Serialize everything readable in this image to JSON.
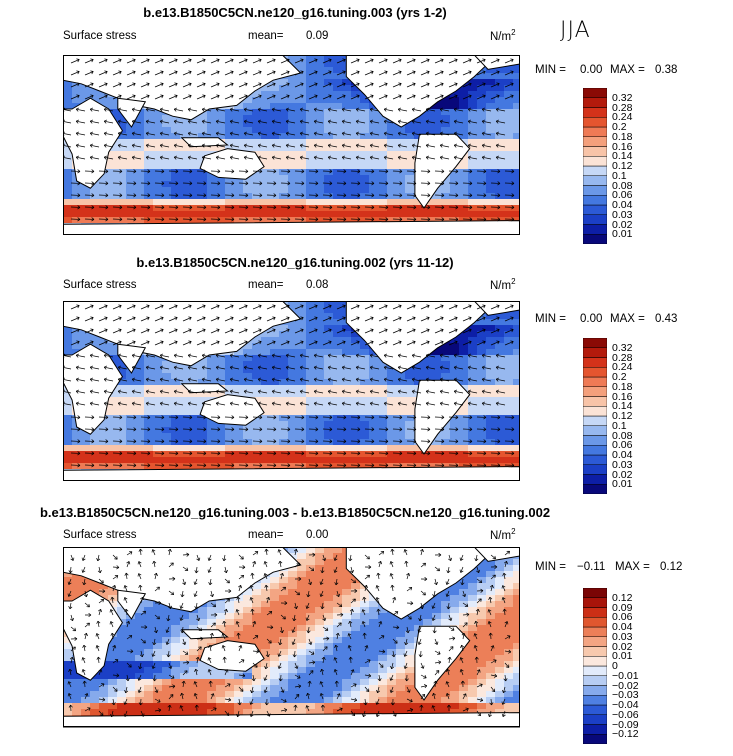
{
  "season": "JJA",
  "panels": [
    {
      "title": "b.e13.B1850C5CN.ne120_g16.tuning.003 (yrs 1-2)",
      "variable": "Surface stress",
      "mean_label": "mean=",
      "mean_value": "0.09",
      "units": "N/m",
      "units_sup": "2",
      "min_label": "MIN =",
      "min_value": "0.00",
      "max_label": "MAX =",
      "max_value": "0.38",
      "colorbar_labels": [
        "0.32",
        "0.28",
        "0.24",
        "0.2",
        "0.18",
        "0.16",
        "0.14",
        "0.12",
        "0.1",
        "0.08",
        "0.06",
        "0.04",
        "0.03",
        "0.02",
        "0.01"
      ]
    },
    {
      "title": "b.e13.B1850C5CN.ne120_g16.tuning.002 (yrs 11-12)",
      "variable": "Surface stress",
      "mean_label": "mean=",
      "mean_value": "0.08",
      "units": "N/m",
      "units_sup": "2",
      "min_label": "MIN =",
      "min_value": "0.00",
      "max_label": "MAX =",
      "max_value": "0.43",
      "colorbar_labels": [
        "0.32",
        "0.28",
        "0.24",
        "0.2",
        "0.18",
        "0.16",
        "0.14",
        "0.12",
        "0.1",
        "0.08",
        "0.06",
        "0.04",
        "0.03",
        "0.02",
        "0.01"
      ]
    },
    {
      "title": "b.e13.B1850C5CN.ne120_g16.tuning.003 - b.e13.B1850C5CN.ne120_g16.tuning.002",
      "variable": "Surface stress",
      "mean_label": "mean=",
      "mean_value": "0.00",
      "units": "N/m",
      "units_sup": "2",
      "min_label": "MIN =",
      "min_value": "−0.11",
      "max_label": "MAX =",
      "max_value": "0.12",
      "colorbar_labels": [
        "0.12",
        "0.09",
        "0.06",
        "0.04",
        "0.03",
        "0.02",
        "0.01",
        "0",
        "−0.01",
        "−0.02",
        "−0.03",
        "−0.04",
        "−0.06",
        "−0.09",
        "−0.12"
      ]
    }
  ],
  "colors": {
    "seq": [
      "#08087a",
      "#0d1ea6",
      "#1b3fc6",
      "#2c5ad6",
      "#4478e0",
      "#6b98e8",
      "#97b8ef",
      "#c6d8f6",
      "#fbe3d6",
      "#f8c4a8",
      "#f4a07c",
      "#ef7a55",
      "#e5552f",
      "#d4321a",
      "#b31a0c",
      "#8a0a05"
    ],
    "div": [
      "#08087a",
      "#0d1ea6",
      "#1b3fc6",
      "#2c5ad6",
      "#4f80e2",
      "#86aaec",
      "#b7cdf3",
      "#e2ebfb",
      "#fbe8de",
      "#f7c9ae",
      "#f3a583",
      "#ec7f58",
      "#e0572f",
      "#cc2f16",
      "#a8140a",
      "#7a0505"
    ]
  }
}
